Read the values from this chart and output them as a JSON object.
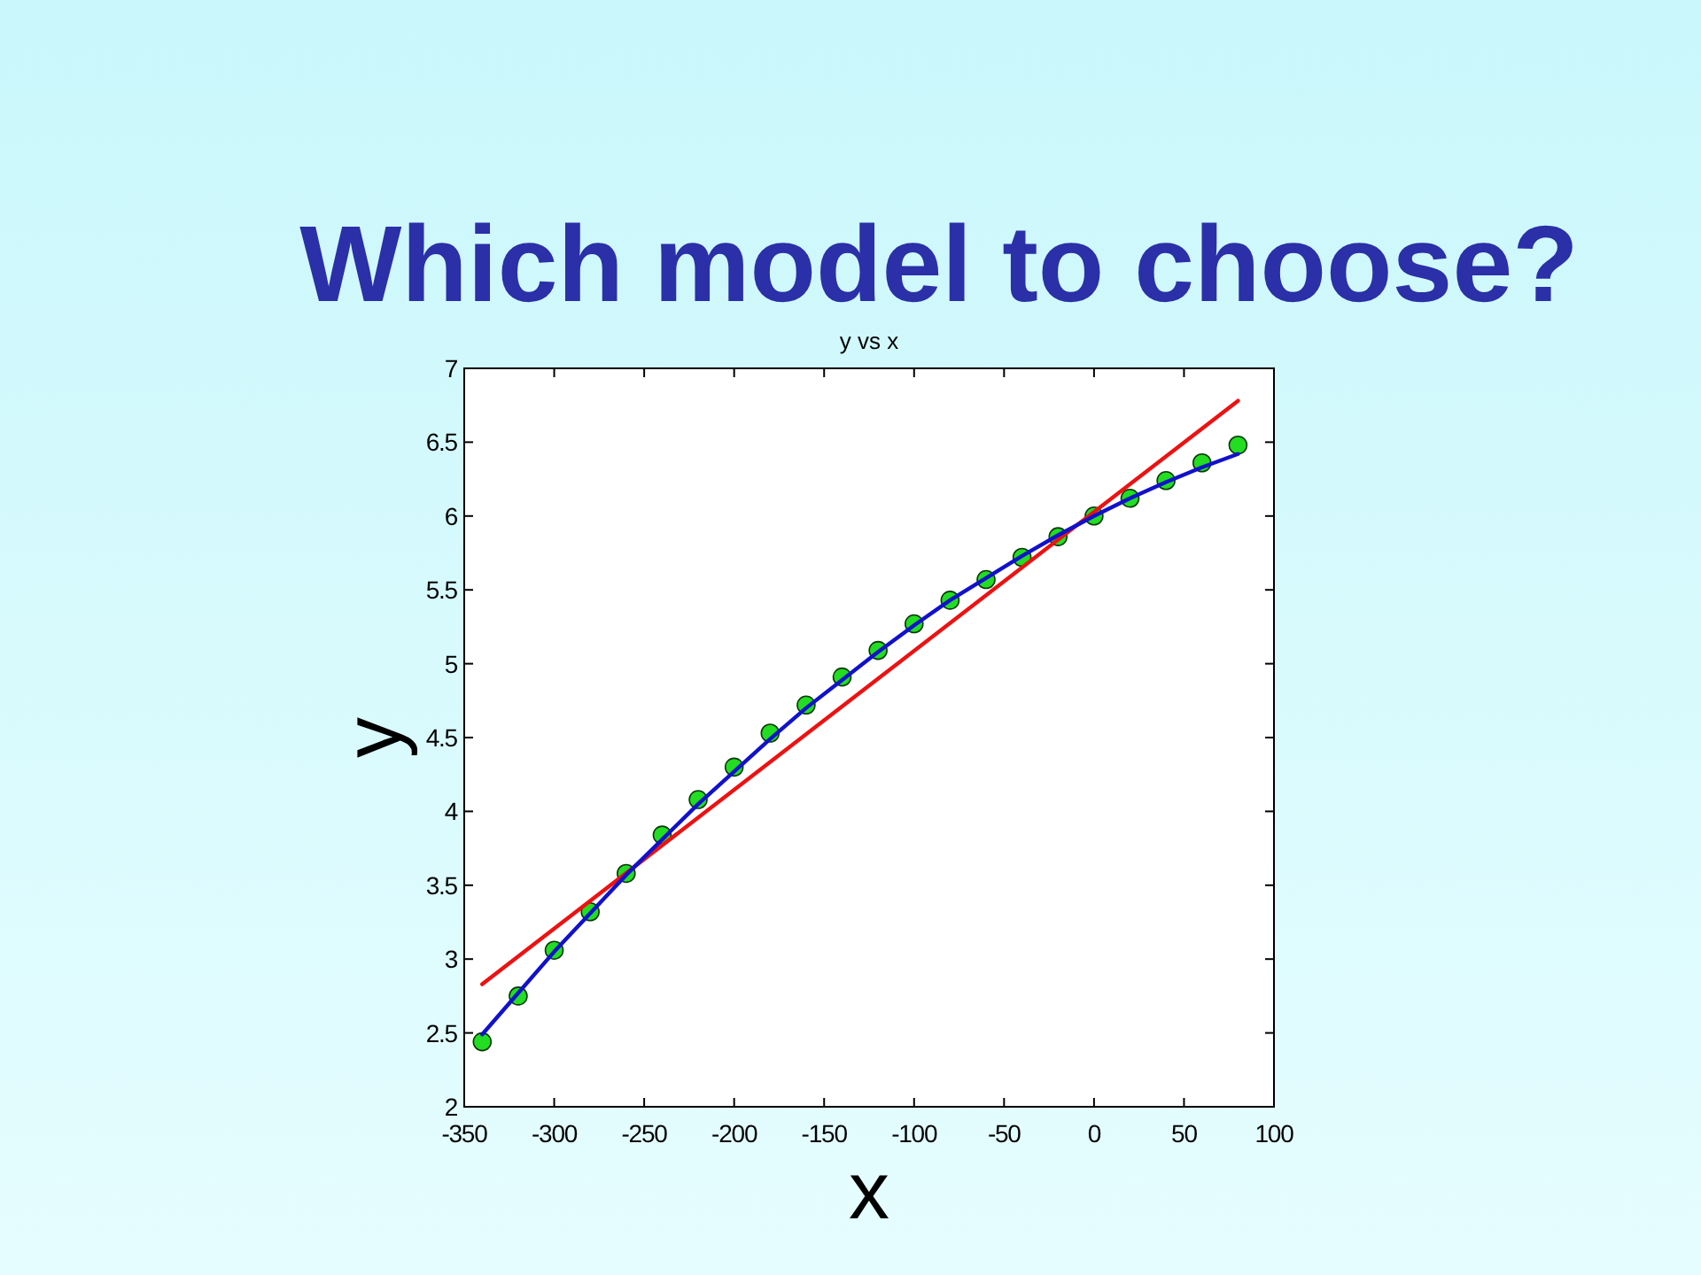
{
  "chart_data": {
    "type": "line",
    "title": "Which model to choose?",
    "subtitle": "y vs x",
    "xlabel": "x",
    "ylabel": "y",
    "xlim": [
      -350,
      100
    ],
    "ylim": [
      2,
      7
    ],
    "xticks": [
      -350,
      -300,
      -250,
      -200,
      -150,
      -100,
      -50,
      0,
      50,
      100
    ],
    "yticks": [
      2,
      2.5,
      3,
      3.5,
      4,
      4.5,
      5,
      5.5,
      6,
      6.5,
      7
    ],
    "series": [
      {
        "type": "scatter",
        "marker": "circle",
        "color": "#22dd22",
        "x": [
          -340,
          -320,
          -300,
          -280,
          -260,
          -240,
          -220,
          -200,
          -180,
          -160,
          -140,
          -120,
          -100,
          -80,
          -60,
          -40,
          -20,
          0,
          20,
          40,
          60,
          80
        ],
        "values": [
          2.44,
          2.75,
          3.06,
          3.32,
          3.58,
          3.84,
          4.08,
          4.3,
          4.53,
          4.72,
          4.91,
          5.09,
          5.27,
          5.43,
          5.57,
          5.72,
          5.86,
          6.0,
          6.12,
          6.24,
          6.36,
          6.48
        ]
      },
      {
        "color": "#ee1111",
        "x": [
          -340,
          80
        ],
        "values": [
          2.83,
          6.78
        ]
      },
      {
        "color": "#1111cc",
        "x": [
          -340,
          -320,
          -300,
          -280,
          -260,
          -240,
          -220,
          -200,
          -180,
          -160,
          -140,
          -120,
          -100,
          -80,
          -60,
          -40,
          -20,
          0,
          20,
          40,
          60,
          80
        ],
        "values": [
          2.49,
          2.77,
          3.05,
          3.31,
          3.57,
          3.81,
          4.05,
          4.27,
          4.49,
          4.7,
          4.89,
          5.08,
          5.26,
          5.43,
          5.58,
          5.73,
          5.87,
          6.0,
          6.12,
          6.23,
          6.33,
          6.42
        ]
      }
    ]
  }
}
